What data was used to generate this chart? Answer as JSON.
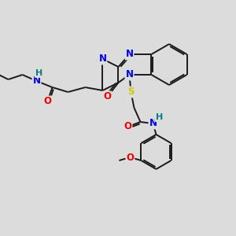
{
  "bg_color": "#dcdcdc",
  "bond_color": "#1a1a1a",
  "atom_colors": {
    "N": "#0000ee",
    "O": "#ee0000",
    "S": "#cccc00",
    "H": "#008080",
    "C": "#1a1a1a"
  },
  "font_size": 8.5,
  "fig_size": [
    3.0,
    3.0
  ],
  "dpi": 100
}
